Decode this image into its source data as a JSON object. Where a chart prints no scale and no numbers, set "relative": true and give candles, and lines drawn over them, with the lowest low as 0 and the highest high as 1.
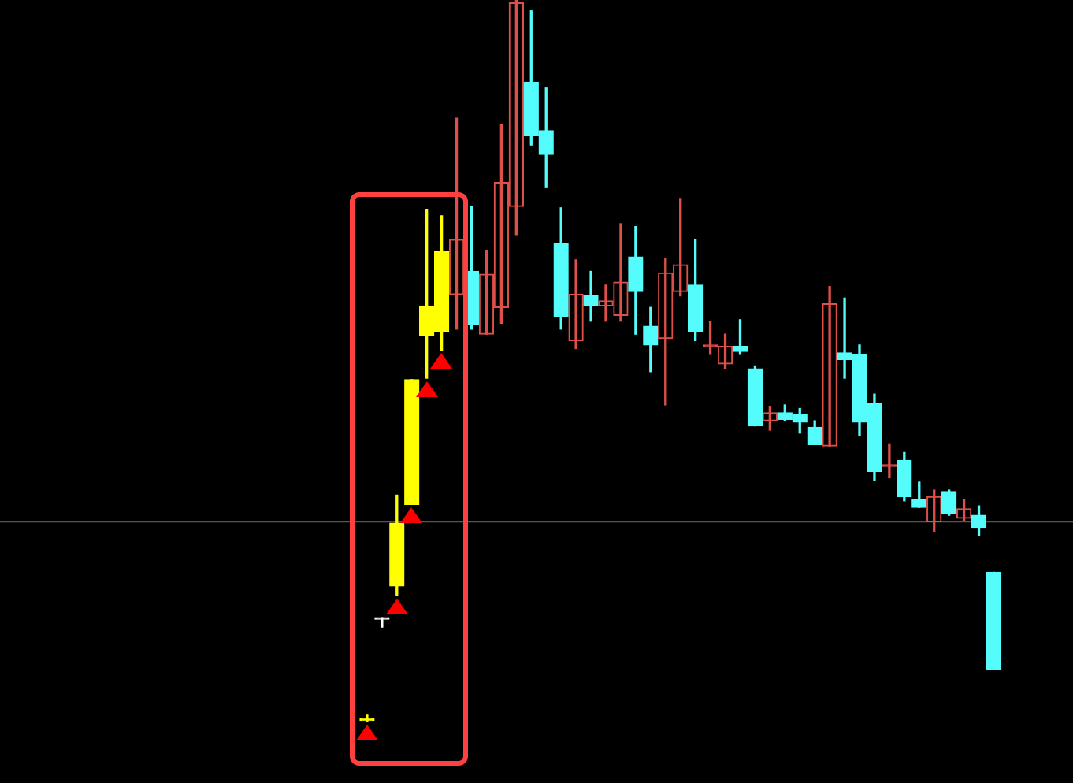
{
  "chart_data": {
    "type": "candlestick",
    "relative": true,
    "categories": [
      null,
      null,
      null,
      null,
      null,
      null,
      null,
      null,
      null,
      null,
      null,
      null,
      null,
      null,
      null,
      null,
      null,
      null,
      null,
      null,
      null,
      null,
      null,
      null,
      null,
      null,
      null,
      null,
      null,
      null,
      null,
      null,
      null,
      null,
      null,
      null,
      null,
      null,
      null,
      null,
      null,
      null,
      null
    ],
    "ohlc": [
      [
        0.004,
        0.009,
        0,
        0.004
      ],
      [
        0.144,
        0.144,
        0.131,
        0.144
      ],
      [
        0.188,
        0.314,
        0.175,
        0.275
      ],
      [
        0.301,
        0.474,
        0.301,
        0.474
      ],
      [
        0.535,
        0.71,
        0.476,
        0.576
      ],
      [
        0.541,
        0.701,
        0.515,
        0.651
      ],
      [
        0.592,
        0.836,
        0.544,
        0.668
      ],
      [
        0.624,
        0.714,
        0.544,
        0.55
      ],
      [
        0.537,
        0.653,
        0.537,
        0.62
      ],
      [
        0.574,
        0.828,
        0.552,
        0.747
      ],
      [
        0.714,
        1,
        0.675,
        0.996
      ],
      [
        0.886,
        0.985,
        0.799,
        0.812
      ],
      [
        0.819,
        0.878,
        0.74,
        0.786
      ],
      [
        0.662,
        0.712,
        0.544,
        0.561
      ],
      [
        0.528,
        0.64,
        0.517,
        0.592
      ],
      [
        0.59,
        0.624,
        0.555,
        0.576
      ],
      [
        0.576,
        0.605,
        0.555,
        0.583
      ],
      [
        0.563,
        0.69,
        0.555,
        0.609
      ],
      [
        0.644,
        0.686,
        0.537,
        0.596
      ],
      [
        0.548,
        0.574,
        0.485,
        0.522
      ],
      [
        0.531,
        0.642,
        0.439,
        0.622
      ],
      [
        0.596,
        0.725,
        0.59,
        0.633
      ],
      [
        0.605,
        0.668,
        0.528,
        0.541
      ],
      [
        0.522,
        0.555,
        0.509,
        0.522
      ],
      [
        0.496,
        0.537,
        0.489,
        0.52
      ],
      [
        0.52,
        0.557,
        0.509,
        0.513
      ],
      [
        0.489,
        0.493,
        0.41,
        0.41
      ],
      [
        0.417,
        0.437,
        0.404,
        0.428
      ],
      [
        0.428,
        0.439,
        0.417,
        0.419
      ],
      [
        0.426,
        0.434,
        0.4,
        0.415
      ],
      [
        0.408,
        0.417,
        0.384,
        0.384
      ],
      [
        0.382,
        0.603,
        0.382,
        0.579
      ],
      [
        0.511,
        0.587,
        0.476,
        0.502
      ],
      [
        0.509,
        0.522,
        0.397,
        0.415
      ],
      [
        0.441,
        0.454,
        0.334,
        0.347
      ],
      [
        0.356,
        0.384,
        0.338,
        0.356
      ],
      [
        0.362,
        0.373,
        0.306,
        0.312
      ],
      [
        0.308,
        0.332,
        0.297,
        0.297
      ],
      [
        0.277,
        0.321,
        0.264,
        0.312
      ],
      [
        0.319,
        0.321,
        0.286,
        0.288
      ],
      [
        0.282,
        0.308,
        0.279,
        0.295
      ],
      [
        0.286,
        0.299,
        0.258,
        0.269
      ],
      [
        0.207,
        0.207,
        0.072,
        0.072
      ]
    ],
    "colors": [
      "#ffff00",
      "#ffffff",
      "#ffff00",
      "#ffff00",
      "#ffff00",
      "#ffff00",
      "#e0504a",
      "#54fcfc",
      "#e0504a",
      "#e0504a",
      "#e0504a",
      "#54fcfc",
      "#54fcfc",
      "#54fcfc",
      "#e0504a",
      "#54fcfc",
      "#e0504a",
      "#e0504a",
      "#54fcfc",
      "#54fcfc",
      "#e0504a",
      "#e0504a",
      "#54fcfc",
      "#e0504a",
      "#e0504a",
      "#54fcfc",
      "#54fcfc",
      "#e0504a",
      "#54fcfc",
      "#54fcfc",
      "#54fcfc",
      "#e0504a",
      "#54fcfc",
      "#54fcfc",
      "#54fcfc",
      "#e0504a",
      "#54fcfc",
      "#54fcfc",
      "#e0504a",
      "#54fcfc",
      "#e0504a",
      "#54fcfc",
      "#54fcfc"
    ],
    "ref_lines": [
      {
        "axis": "y",
        "value": 0.277,
        "color": "#555555"
      }
    ]
  }
}
